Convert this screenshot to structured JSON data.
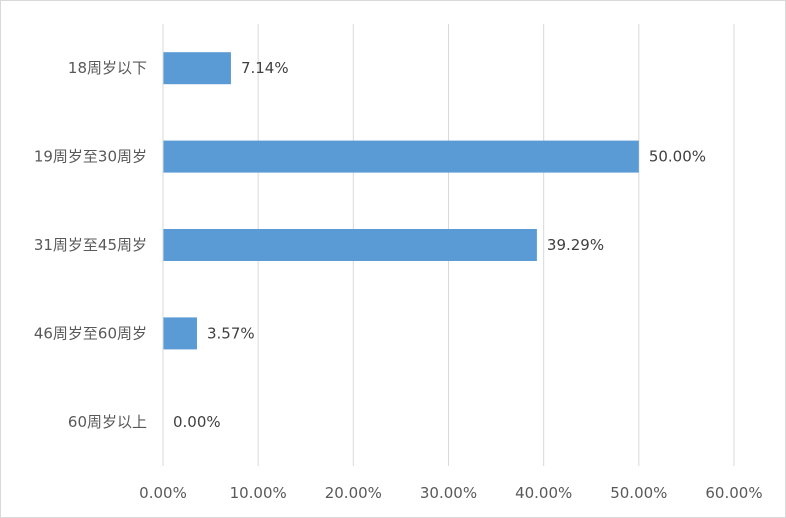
{
  "chart_data": {
    "type": "bar",
    "orientation": "horizontal",
    "categories": [
      "18周岁以下",
      "19周岁至30周岁",
      "31周岁至45周岁",
      "46周岁至60周岁",
      "60周岁以上"
    ],
    "values": [
      7.14,
      50.0,
      39.29,
      3.57,
      0.0
    ],
    "value_labels": [
      "7.14%",
      "50.00%",
      "39.29%",
      "3.57%",
      "0.00%"
    ],
    "xlim": [
      0,
      60
    ],
    "x_ticks": [
      0,
      10,
      20,
      30,
      40,
      50,
      60
    ],
    "x_tick_labels": [
      "0.00%",
      "10.00%",
      "20.00%",
      "30.00%",
      "40.00%",
      "50.00%",
      "60.00%"
    ],
    "title": "",
    "xlabel": "",
    "ylabel": "",
    "grid": "vertical",
    "legend": "none",
    "bar_color": "#5b9bd5",
    "grid_color": "#d9d9d9"
  }
}
